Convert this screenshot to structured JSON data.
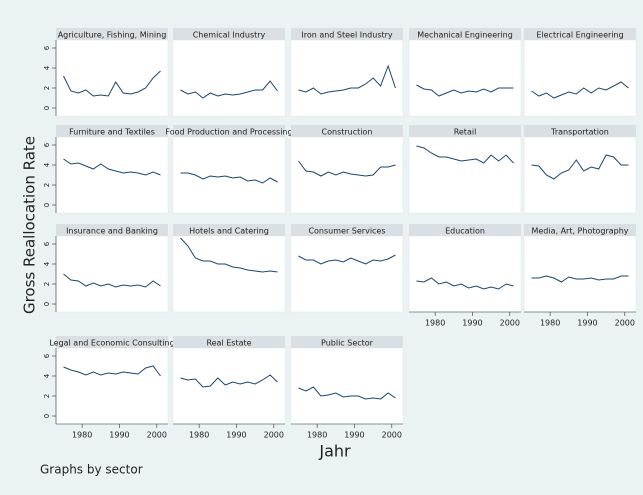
{
  "chart_data": {
    "type": "line",
    "y_label": "Gross Reallocation Rate",
    "x_label": "Jahr",
    "note": "Graphs by sector",
    "color": "#1a476f",
    "x": [
      1975,
      1977,
      1979,
      1981,
      1983,
      1985,
      1987,
      1989,
      1991,
      1993,
      1995,
      1997,
      1999,
      2001
    ],
    "xlim": [
      1973,
      2003
    ],
    "xticks": [
      1980,
      1990,
      2000
    ],
    "ylim": [
      -0.8,
      6.8
    ],
    "yticks": [
      0,
      2,
      4,
      6
    ],
    "panels": [
      {
        "title": "Agriculture, Fishing, Mining",
        "values": [
          3.2,
          1.7,
          1.5,
          1.8,
          1.2,
          1.3,
          1.2,
          2.6,
          1.5,
          1.4,
          1.6,
          2.0,
          3.0,
          3.7
        ]
      },
      {
        "title": "Chemical Industry",
        "values": [
          1.8,
          1.4,
          1.6,
          1.0,
          1.5,
          1.2,
          1.4,
          1.3,
          1.4,
          1.6,
          1.8,
          1.8,
          2.7,
          1.7
        ]
      },
      {
        "title": "Iron and Steel Industry",
        "values": [
          1.8,
          1.6,
          2.0,
          1.4,
          1.6,
          1.7,
          1.8,
          2.0,
          2.0,
          2.4,
          3.0,
          2.2,
          4.2,
          2.0
        ]
      },
      {
        "title": "Mechanical Engineering",
        "values": [
          2.3,
          1.9,
          1.8,
          1.2,
          1.5,
          1.8,
          1.5,
          1.7,
          1.6,
          1.9,
          1.6,
          2.0,
          2.0,
          2.0
        ]
      },
      {
        "title": "Electrical Engineering",
        "values": [
          1.7,
          1.2,
          1.5,
          1.0,
          1.3,
          1.6,
          1.4,
          2.0,
          1.5,
          2.0,
          1.8,
          2.2,
          2.6,
          2.0
        ]
      },
      {
        "title": "Furniture and Textiles",
        "values": [
          4.6,
          4.1,
          4.2,
          3.9,
          3.6,
          4.1,
          3.6,
          3.4,
          3.2,
          3.3,
          3.2,
          3.0,
          3.3,
          3.0
        ]
      },
      {
        "title": "Food Production and Processing",
        "values": [
          3.2,
          3.2,
          3.0,
          2.6,
          2.9,
          2.8,
          2.9,
          2.7,
          2.8,
          2.4,
          2.5,
          2.2,
          2.7,
          2.3
        ]
      },
      {
        "title": "Construction",
        "values": [
          4.4,
          3.4,
          3.3,
          2.9,
          3.3,
          3.0,
          3.3,
          3.1,
          3.0,
          2.9,
          3.0,
          3.8,
          3.8,
          4.0
        ]
      },
      {
        "title": "Retail",
        "values": [
          5.9,
          5.7,
          5.2,
          4.8,
          4.8,
          4.6,
          4.4,
          4.5,
          4.6,
          4.2,
          5.0,
          4.4,
          5.0,
          4.2
        ]
      },
      {
        "title": "Transportation",
        "values": [
          4.0,
          3.9,
          3.0,
          2.6,
          3.2,
          3.5,
          4.5,
          3.4,
          3.8,
          3.6,
          5.0,
          4.8,
          4.0,
          4.0
        ]
      },
      {
        "title": "Insurance and Banking",
        "values": [
          3.0,
          2.4,
          2.3,
          1.8,
          2.1,
          1.8,
          2.0,
          1.7,
          1.9,
          1.8,
          1.9,
          1.7,
          2.3,
          1.8
        ]
      },
      {
        "title": "Hotels and Catering",
        "values": [
          6.6,
          5.8,
          4.6,
          4.3,
          4.3,
          4.0,
          4.0,
          3.7,
          3.6,
          3.4,
          3.3,
          3.2,
          3.3,
          3.2
        ]
      },
      {
        "title": "Consumer Services",
        "values": [
          4.8,
          4.4,
          4.4,
          4.0,
          4.3,
          4.4,
          4.2,
          4.6,
          4.3,
          4.0,
          4.4,
          4.3,
          4.5,
          4.9
        ]
      },
      {
        "title": "Education",
        "values": [
          2.3,
          2.2,
          2.6,
          2.0,
          2.2,
          1.8,
          2.0,
          1.6,
          1.8,
          1.5,
          1.7,
          1.5,
          2.0,
          1.8
        ]
      },
      {
        "title": "Media, Art, Photography",
        "values": [
          2.6,
          2.6,
          2.8,
          2.6,
          2.2,
          2.7,
          2.5,
          2.5,
          2.6,
          2.4,
          2.5,
          2.5,
          2.8,
          2.8
        ]
      },
      {
        "title": "Legal and Economic Consulting",
        "values": [
          4.9,
          4.6,
          4.4,
          4.1,
          4.4,
          4.1,
          4.3,
          4.2,
          4.4,
          4.3,
          4.2,
          4.8,
          5.0,
          4.0
        ]
      },
      {
        "title": "Real Estate",
        "values": [
          3.8,
          3.6,
          3.7,
          2.9,
          3.0,
          3.8,
          3.1,
          3.4,
          3.2,
          3.4,
          3.2,
          3.6,
          4.1,
          3.4
        ]
      },
      {
        "title": "Public Sector",
        "values": [
          2.8,
          2.5,
          2.9,
          2.0,
          2.1,
          2.3,
          1.9,
          2.0,
          2.0,
          1.7,
          1.8,
          1.7,
          2.3,
          1.8
        ]
      }
    ]
  }
}
